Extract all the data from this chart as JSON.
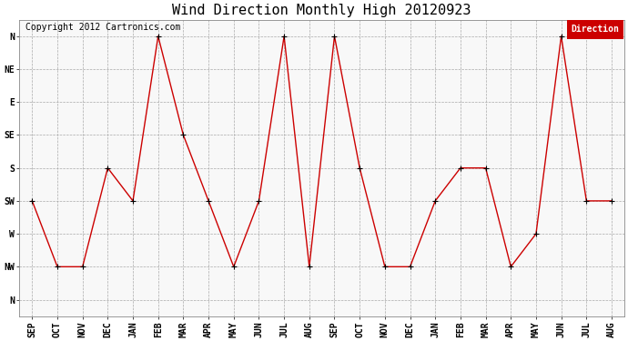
{
  "title": "Wind Direction Monthly High 20120923",
  "copyright": "Copyright 2012 Cartronics.com",
  "legend_label": "Direction",
  "legend_bg": "#cc0000",
  "legend_text_color": "#ffffff",
  "x_labels": [
    "SEP",
    "OCT",
    "NOV",
    "DEC",
    "JAN",
    "FEB",
    "MAR",
    "APR",
    "MAY",
    "JUN",
    "JUL",
    "AUG",
    "SEP",
    "OCT",
    "NOV",
    "DEC",
    "JAN",
    "FEB",
    "MAR",
    "APR",
    "MAY",
    "JUN",
    "JUL",
    "AUG"
  ],
  "y_labels_top_to_bottom": [
    "N",
    "NW",
    "W",
    "SW",
    "S",
    "SE",
    "E",
    "NE",
    "N"
  ],
  "y_numeric": [
    8,
    7,
    6,
    5,
    4,
    3,
    2,
    1,
    0
  ],
  "data_points": [
    5,
    7,
    7,
    4,
    5,
    0,
    3,
    5,
    7,
    5,
    0,
    7,
    0,
    4,
    7,
    7,
    5,
    4,
    4,
    7,
    6,
    0,
    5,
    5
  ],
  "line_color": "#cc0000",
  "marker_color": "#000000",
  "bg_color": "#ffffff",
  "plot_bg": "#f8f8f8",
  "grid_color": "#aaaaaa",
  "title_fontsize": 11,
  "axis_fontsize": 7,
  "copyright_fontsize": 7
}
